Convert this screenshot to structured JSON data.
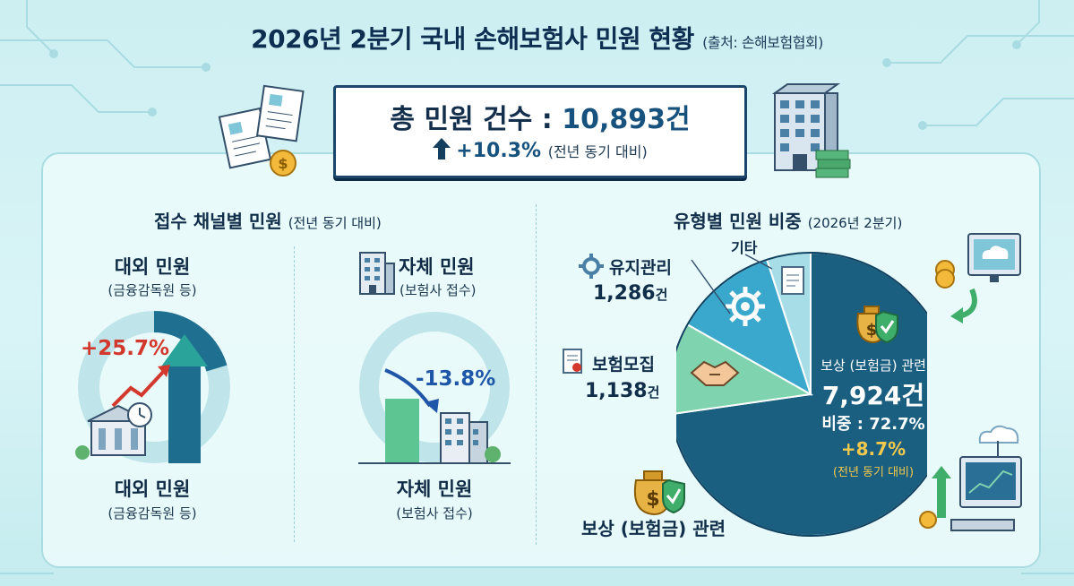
{
  "header": {
    "title": "2026년 2분기 국내 손해보험사 민원 현황",
    "source": "(출처: 손해보험협회)"
  },
  "summary": {
    "total_label": "총 민원 건수 : ",
    "total_value": "10,893건",
    "change": "+10.3%",
    "change_note": "(전년 동기 대비)"
  },
  "channel_section": {
    "title": "접수 채널별 민원",
    "subtitle": "(전년 동기 대비)",
    "external": {
      "label": "대외 민원",
      "sublabel": "(금융감독원 등)",
      "bottom_label": "대외 민원",
      "bottom_sublabel": "(금융감독원 등)",
      "change": "+25.7%"
    },
    "internal": {
      "label": "자체 민원",
      "sublabel": "(보험사 접수)",
      "bottom_label": "자체 민원",
      "bottom_sublabel": "(보험사 접수)",
      "change": "-13.8%"
    }
  },
  "type_section": {
    "title": "유형별 민원 비중",
    "subtitle": "(2026년 2분기)",
    "compensation": {
      "label": "보상 (보험금) 관련",
      "count": "7,924건",
      "share": "비중 : 72.7%",
      "change": "+8.7%",
      "change_note": "(전년 동기 대비)",
      "bottom_label": "보상 (보험금) 관련"
    },
    "maintenance": {
      "label": "유지관리",
      "count": "1,286",
      "unit": "건"
    },
    "recruitment": {
      "label": "보험모집",
      "count": "1,138",
      "unit": "건"
    },
    "other": {
      "label": "기타"
    }
  },
  "chart_data": [
    {
      "type": "bar",
      "title": "접수 채널별 민원",
      "categories": [
        "대외 민원",
        "자체 민원"
      ],
      "values": [
        25.7,
        -13.8
      ],
      "unit": "%"
    },
    {
      "type": "pie",
      "title": "유형별 민원 비중",
      "categories": [
        "보상 (보험금) 관련",
        "보험모집",
        "유지관리",
        "기타"
      ],
      "values": [
        7924,
        1138,
        1286,
        545
      ],
      "shares": [
        72.7,
        10.4,
        11.8,
        5.0
      ],
      "colors": [
        "#1a5e80",
        "#7fd3ae",
        "#3aa8cc",
        "#a7dde7"
      ]
    }
  ],
  "colors": {
    "navy": "#0f2f52",
    "teal_dark": "#1a5e80",
    "increase": "#d2382b",
    "decrease": "#1f56a8",
    "highlight": "#f2c94c"
  }
}
